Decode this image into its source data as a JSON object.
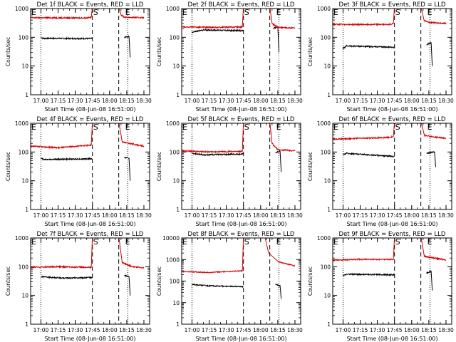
{
  "colors": {
    "events": "#000000",
    "lld": "#d40000",
    "axis": "#000000"
  },
  "chart_data": [
    {
      "type": "line",
      "title": "Det 1f BLACK = Events, RED = LLD",
      "xlabel": "Start Time (08-Jun-08 16:51:00)",
      "ylabel": "Counts/sec",
      "yscale": "log",
      "ylim": [
        1,
        1000
      ],
      "xticks": [
        "17:00",
        "17:15",
        "17:30",
        "17:45",
        "18:00",
        "18:15",
        "18:30"
      ],
      "markers": [
        {
          "label": "E",
          "time": "16:51"
        },
        {
          "label": "S",
          "time": "17:45"
        },
        {
          "label": "E",
          "time": "18:13"
        }
      ],
      "dotted_lines": [
        "17:00",
        "18:16"
      ],
      "dashed_lines": [
        "17:45",
        "18:08"
      ],
      "series": [
        {
          "name": "Events",
          "segments": [
            [
              [
                "17:00",
                100
              ],
              [
                "17:02",
                92
              ],
              [
                "17:45",
                90
              ]
            ],
            [
              [
                "18:13",
                100
              ],
              [
                "18:17",
                105
              ],
              [
                "18:18",
                20
              ]
            ]
          ]
        },
        {
          "name": "LLD",
          "segments": [
            [
              [
                "16:51",
                480
              ],
              [
                "17:40",
                470
              ],
              [
                "17:44",
                500
              ],
              [
                "17:45",
                1200
              ]
            ],
            [
              [
                "18:08",
                1200
              ],
              [
                "18:10",
                600
              ],
              [
                "18:13",
                500
              ],
              [
                "18:30",
                480
              ]
            ]
          ]
        }
      ]
    },
    {
      "type": "line",
      "title": "Det 2f BLACK = Events, RED = LLD",
      "xlabel": "Start Time (08-Jun-08 16:51:00)",
      "ylabel": "Counts/sec",
      "yscale": "log",
      "ylim": [
        1,
        1000
      ],
      "xticks": [
        "17:00",
        "17:15",
        "17:30",
        "17:45",
        "18:00",
        "18:15",
        "18:30"
      ],
      "markers": [
        {
          "label": "E",
          "time": "16:51"
        },
        {
          "label": "S",
          "time": "17:45"
        },
        {
          "label": "E",
          "time": "18:13"
        }
      ],
      "dotted_lines": [
        "17:00",
        "18:16"
      ],
      "dashed_lines": [
        "17:45",
        "18:08"
      ],
      "series": [
        {
          "name": "Events",
          "segments": [
            [
              [
                "17:00",
                150
              ],
              [
                "17:10",
                180
              ],
              [
                "17:45",
                170
              ]
            ],
            [
              [
                "18:11",
                200
              ],
              [
                "18:15",
                230
              ],
              [
                "18:16",
                30
              ]
            ]
          ]
        },
        {
          "name": "LLD",
          "segments": [
            [
              [
                "16:51",
                230
              ],
              [
                "17:20",
                220
              ],
              [
                "17:44",
                230
              ],
              [
                "17:45",
                1200
              ]
            ],
            [
              [
                "18:08",
                1200
              ],
              [
                "18:10",
                300
              ],
              [
                "18:15",
                220
              ],
              [
                "18:30",
                210
              ]
            ]
          ]
        }
      ]
    },
    {
      "type": "line",
      "title": "Det 3f BLACK = Events, RED = LLD",
      "xlabel": "Start Time (08-Jun-08 16:51:00)",
      "ylabel": "Counts/sec",
      "yscale": "log",
      "ylim": [
        1,
        1000
      ],
      "xticks": [
        "17:00",
        "17:15",
        "17:30",
        "17:45",
        "18:00",
        "18:15",
        "18:30"
      ],
      "markers": [
        {
          "label": "E",
          "time": "16:51"
        },
        {
          "label": "S",
          "time": "17:45"
        },
        {
          "label": "E",
          "time": "18:13"
        }
      ],
      "dotted_lines": [
        "17:00",
        "18:16"
      ],
      "dashed_lines": [
        "17:45",
        "18:08"
      ],
      "series": [
        {
          "name": "Events",
          "segments": [
            [
              [
                "17:00",
                40
              ],
              [
                "17:03",
                50
              ],
              [
                "17:45",
                45
              ]
            ],
            [
              [
                "18:13",
                55
              ],
              [
                "18:17",
                65
              ],
              [
                "18:18",
                10
              ]
            ]
          ]
        },
        {
          "name": "LLD",
          "segments": [
            [
              [
                "16:51",
                280
              ],
              [
                "17:40",
                280
              ],
              [
                "17:44",
                300
              ],
              [
                "17:45",
                1200
              ]
            ],
            [
              [
                "18:08",
                1200
              ],
              [
                "18:11",
                380
              ],
              [
                "18:15",
                330
              ],
              [
                "18:30",
                300
              ]
            ]
          ]
        }
      ]
    },
    {
      "type": "line",
      "title": "Det 4f BLACK = Events, RED = LLD",
      "xlabel": "Start Time (08-Jun-08 16:51:00)",
      "ylabel": "Counts/sec",
      "yscale": "log",
      "ylim": [
        1,
        1000
      ],
      "xticks": [
        "17:00",
        "17:15",
        "17:30",
        "17:45",
        "18:00",
        "18:15",
        "18:30"
      ],
      "markers": [
        {
          "label": "E",
          "time": "16:51"
        },
        {
          "label": "S",
          "time": "17:45"
        },
        {
          "label": "E",
          "time": "18:13"
        }
      ],
      "dotted_lines": [
        "17:00",
        "18:16"
      ],
      "dashed_lines": [
        "17:45",
        "18:08"
      ],
      "series": [
        {
          "name": "Events",
          "segments": [
            [
              [
                "17:00",
                60
              ],
              [
                "17:03",
                55
              ],
              [
                "17:45",
                58
              ]
            ],
            [
              [
                "18:13",
                65
              ],
              [
                "18:17",
                60
              ],
              [
                "18:18",
                10
              ]
            ]
          ]
        },
        {
          "name": "LLD",
          "segments": [
            [
              [
                "16:51",
                160
              ],
              [
                "17:15",
                140
              ],
              [
                "17:44",
                175
              ],
              [
                "17:45",
                1200
              ]
            ],
            [
              [
                "18:08",
                1200
              ],
              [
                "18:11",
                220
              ],
              [
                "18:20",
                190
              ],
              [
                "18:30",
                160
              ]
            ]
          ]
        }
      ]
    },
    {
      "type": "line",
      "title": "Det 5f BLACK = Events, RED = LLD",
      "xlabel": "Start Time (08-Jun-08 16:51:00)",
      "ylabel": "Counts/sec",
      "yscale": "log",
      "ylim": [
        1,
        1000
      ],
      "xticks": [
        "17:00",
        "17:15",
        "17:30",
        "17:45",
        "18:00",
        "18:15",
        "18:30"
      ],
      "markers": [
        {
          "label": "E",
          "time": "16:51"
        },
        {
          "label": "S",
          "time": "17:45"
        },
        {
          "label": "E",
          "time": "18:13"
        }
      ],
      "dotted_lines": [
        "17:00",
        "18:16"
      ],
      "dashed_lines": [
        "17:45",
        "18:08"
      ],
      "series": [
        {
          "name": "Events",
          "segments": [
            [
              [
                "17:00",
                90
              ],
              [
                "17:10",
                80
              ],
              [
                "17:45",
                85
              ]
            ],
            [
              [
                "18:13",
                95
              ],
              [
                "18:17",
                105
              ],
              [
                "18:18",
                20
              ]
            ]
          ]
        },
        {
          "name": "LLD",
          "segments": [
            [
              [
                "16:51",
                110
              ],
              [
                "17:15",
                100
              ],
              [
                "17:44",
                105
              ],
              [
                "17:45",
                1200
              ]
            ],
            [
              [
                "18:08",
                1200
              ],
              [
                "18:10",
                200
              ],
              [
                "18:15",
                120
              ],
              [
                "18:30",
                110
              ]
            ]
          ]
        }
      ]
    },
    {
      "type": "line",
      "title": "Det 6f BLACK = Events, RED = LLD",
      "xlabel": "Start Time (08-Jun-08 16:51:00)",
      "ylabel": "Counts/sec",
      "yscale": "log",
      "ylim": [
        1,
        1000
      ],
      "xticks": [
        "17:00",
        "17:15",
        "17:30",
        "17:45",
        "18:00",
        "18:15",
        "18:30"
      ],
      "markers": [
        {
          "label": "E",
          "time": "16:51"
        },
        {
          "label": "S",
          "time": "17:45"
        },
        {
          "label": "E",
          "time": "18:13"
        }
      ],
      "dotted_lines": [
        "17:00",
        "18:16"
      ],
      "dashed_lines": [
        "17:45",
        "18:08"
      ],
      "series": [
        {
          "name": "Events",
          "segments": [
            [
              [
                "17:00",
                80
              ],
              [
                "17:03",
                90
              ],
              [
                "17:45",
                70
              ]
            ],
            [
              [
                "18:13",
                90
              ],
              [
                "18:20",
                100
              ],
              [
                "18:21",
                30
              ]
            ]
          ]
        },
        {
          "name": "LLD",
          "segments": [
            [
              [
                "16:51",
                280
              ],
              [
                "17:40",
                320
              ],
              [
                "17:44",
                350
              ],
              [
                "17:45",
                1200
              ]
            ],
            [
              [
                "18:08",
                1200
              ],
              [
                "18:11",
                380
              ],
              [
                "18:20",
                330
              ],
              [
                "18:30",
                300
              ]
            ]
          ]
        }
      ]
    },
    {
      "type": "line",
      "title": "Det 7f BLACK = Events, RED = LLD",
      "xlabel": "Start Time (08-Jun-08 16:51:00)",
      "ylabel": "Counts/sec",
      "yscale": "log",
      "ylim": [
        1,
        1000
      ],
      "xticks": [
        "17:00",
        "17:15",
        "17:30",
        "17:45",
        "18:00",
        "18:15",
        "18:30"
      ],
      "markers": [
        {
          "label": "E",
          "time": "16:51"
        },
        {
          "label": "S",
          "time": "17:45"
        },
        {
          "label": "E",
          "time": "18:13"
        }
      ],
      "dotted_lines": [
        "17:00",
        "18:16"
      ],
      "dashed_lines": [
        "17:45",
        "18:08"
      ],
      "series": [
        {
          "name": "Events",
          "segments": [
            [
              [
                "17:00",
                45
              ],
              [
                "17:20",
                40
              ],
              [
                "17:45",
                42
              ]
            ],
            [
              [
                "18:13",
                50
              ],
              [
                "18:17",
                45
              ],
              [
                "18:18",
                10
              ]
            ]
          ]
        },
        {
          "name": "LLD",
          "segments": [
            [
              [
                "16:51",
                95
              ],
              [
                "17:15",
                100
              ],
              [
                "17:44",
                95
              ],
              [
                "17:45",
                1200
              ]
            ],
            [
              [
                "18:08",
                1200
              ],
              [
                "18:11",
                140
              ],
              [
                "18:20",
                100
              ],
              [
                "18:30",
                90
              ]
            ]
          ]
        }
      ]
    },
    {
      "type": "line",
      "title": "Det 8f BLACK = Events, RED = LLD",
      "xlabel": "Start Time (08-Jun-08 16:51:00)",
      "ylabel": "Counts/sec",
      "yscale": "log",
      "ylim": [
        1,
        10000
      ],
      "xticks": [
        "17:00",
        "17:15",
        "17:30",
        "17:45",
        "18:00",
        "18:15",
        "18:30"
      ],
      "markers": [
        {
          "label": "E",
          "time": "16:51"
        },
        {
          "label": "S",
          "time": "17:45"
        },
        {
          "label": "E",
          "time": "18:13"
        }
      ],
      "dotted_lines": [
        "17:00",
        "18:16"
      ],
      "dashed_lines": [
        "17:45",
        "18:08"
      ],
      "series": [
        {
          "name": "Events",
          "segments": [
            [
              [
                "17:00",
                70
              ],
              [
                "17:15",
                60
              ],
              [
                "17:45",
                55
              ]
            ],
            [
              [
                "18:13",
                70
              ],
              [
                "18:17",
                60
              ],
              [
                "18:18",
                15
              ]
            ]
          ]
        },
        {
          "name": "LLD",
          "segments": [
            [
              [
                "16:51",
                280
              ],
              [
                "17:15",
                250
              ],
              [
                "17:44",
                300
              ],
              [
                "17:45",
                10000
              ]
            ],
            [
              [
                "18:04",
                10000
              ],
              [
                "18:07",
                2000
              ],
              [
                "18:15",
                800
              ],
              [
                "18:30",
                500
              ]
            ]
          ]
        }
      ]
    },
    {
      "type": "line",
      "title": "Det 9f BLACK = Events, RED = LLD",
      "xlabel": "Start Time (08-Jun-08 16:51:00)",
      "ylabel": "Counts/sec",
      "yscale": "log",
      "ylim": [
        1,
        1000
      ],
      "xticks": [
        "17:00",
        "17:15",
        "17:30",
        "17:45",
        "18:00",
        "18:15",
        "18:30"
      ],
      "markers": [
        {
          "label": "E",
          "time": "16:51"
        },
        {
          "label": "S",
          "time": "17:45"
        },
        {
          "label": "E",
          "time": "18:13"
        }
      ],
      "dotted_lines": [
        "17:00",
        "18:16"
      ],
      "dashed_lines": [
        "17:45",
        "18:08"
      ],
      "series": [
        {
          "name": "Events",
          "segments": [
            [
              [
                "17:00",
                50
              ],
              [
                "17:05",
                55
              ],
              [
                "17:45",
                52
              ]
            ],
            [
              [
                "18:13",
                60
              ],
              [
                "18:17",
                70
              ],
              [
                "18:18",
                15
              ]
            ]
          ]
        },
        {
          "name": "LLD",
          "segments": [
            [
              [
                "16:51",
                170
              ],
              [
                "17:15",
                180
              ],
              [
                "17:44",
                180
              ],
              [
                "17:45",
                1200
              ]
            ],
            [
              [
                "18:08",
                1200
              ],
              [
                "18:11",
                230
              ],
              [
                "18:20",
                200
              ],
              [
                "18:30",
                170
              ]
            ]
          ]
        }
      ]
    }
  ]
}
